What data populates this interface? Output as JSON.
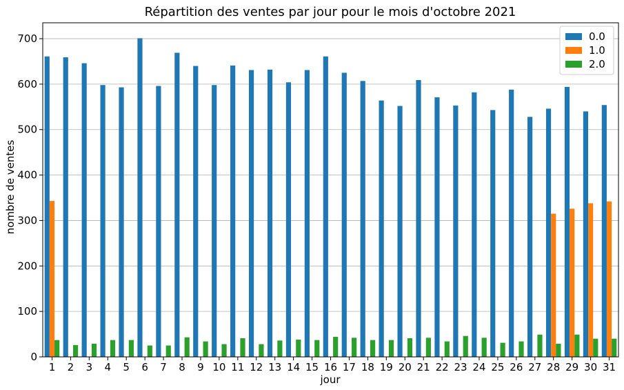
{
  "chart_data": {
    "type": "bar",
    "title": "Répartition des ventes par jour pour le mois d'octobre 2021",
    "xlabel": "jour",
    "ylabel": "nombre de ventes",
    "ylim": [
      0,
      735
    ],
    "yticks": [
      0,
      100,
      200,
      300,
      400,
      500,
      600,
      700
    ],
    "grid": "y",
    "legend_position": "top-right",
    "categories": [
      "1",
      "2",
      "3",
      "4",
      "5",
      "6",
      "7",
      "8",
      "9",
      "10",
      "11",
      "12",
      "13",
      "14",
      "15",
      "16",
      "17",
      "18",
      "19",
      "20",
      "21",
      "22",
      "23",
      "24",
      "25",
      "26",
      "27",
      "28",
      "29",
      "30",
      "31"
    ],
    "series": [
      {
        "name": "0.0",
        "color": "#1f77b4",
        "values": [
          661,
          659,
          646,
          598,
          593,
          701,
          596,
          669,
          640,
          598,
          641,
          631,
          632,
          604,
          631,
          661,
          625,
          607,
          564,
          552,
          609,
          571,
          553,
          582,
          543,
          588,
          528,
          546,
          594,
          540,
          554
        ]
      },
      {
        "name": "1.0",
        "color": "#ff7f0e",
        "values": [
          343,
          null,
          null,
          null,
          null,
          null,
          null,
          null,
          null,
          null,
          null,
          null,
          null,
          null,
          null,
          null,
          null,
          null,
          null,
          null,
          null,
          null,
          null,
          null,
          null,
          null,
          null,
          315,
          326,
          338,
          342
        ]
      },
      {
        "name": "2.0",
        "color": "#2ca02c",
        "values": [
          37,
          26,
          29,
          37,
          37,
          25,
          25,
          43,
          34,
          28,
          41,
          28,
          36,
          38,
          37,
          44,
          42,
          37,
          37,
          41,
          42,
          34,
          46,
          42,
          31,
          34,
          49,
          29,
          49,
          40,
          40
        ]
      }
    ]
  }
}
